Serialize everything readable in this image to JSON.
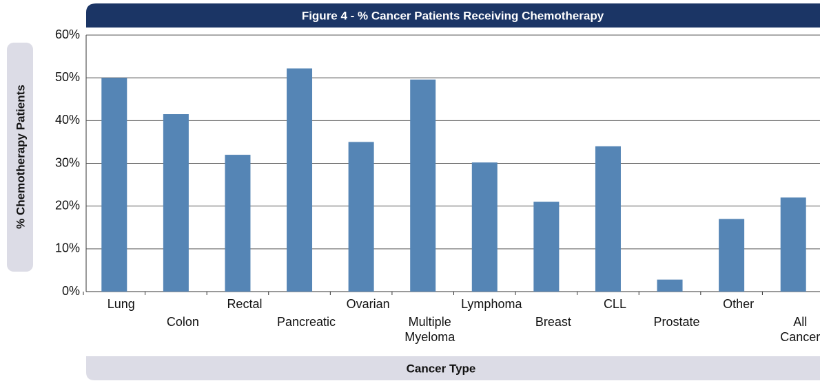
{
  "chart_data": {
    "type": "bar",
    "title": "Figure 4 - % Cancer Patients Receiving Chemotherapy",
    "y_label": "% Chemotherapy Patients",
    "x_label": "Cancer Type",
    "categories": [
      "Lung",
      "Colon",
      "Rectal",
      "Pancreatic",
      "Ovarian",
      "Multiple Myeloma",
      "Lymphoma",
      "Breast",
      "CLL",
      "Prostate",
      "Other",
      "All Cancer"
    ],
    "values": [
      50,
      41.5,
      32,
      52.2,
      35,
      49.6,
      30.2,
      21,
      34,
      2.8,
      17,
      22
    ],
    "color": "#5585b5",
    "ylim": [
      0,
      60
    ],
    "yticks": [
      {
        "value": 0,
        "label": "0%"
      },
      {
        "value": 10,
        "label": "10%"
      },
      {
        "value": 20,
        "label": "20%"
      },
      {
        "value": 30,
        "label": "30%"
      },
      {
        "value": 40,
        "label": "40%"
      },
      {
        "value": 50,
        "label": "50%"
      },
      {
        "value": 60,
        "label": "60%"
      }
    ],
    "grid": true
  }
}
